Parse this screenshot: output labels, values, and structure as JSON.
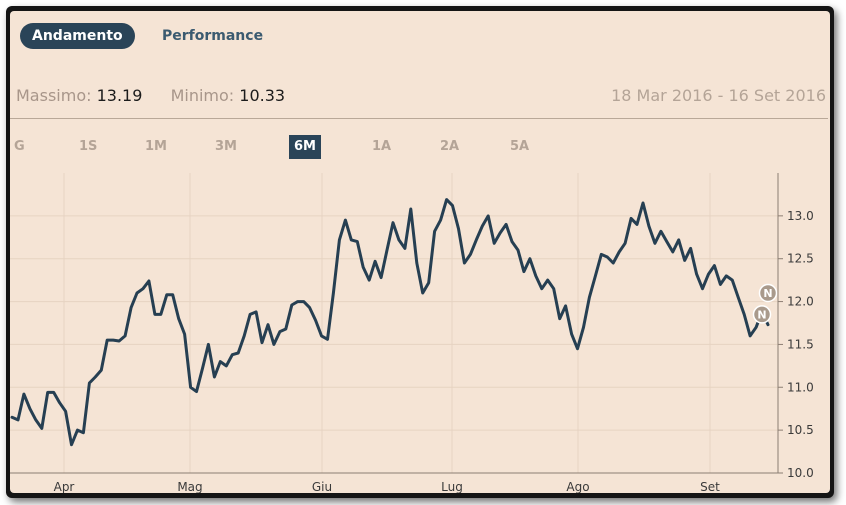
{
  "tabs": {
    "andamento": "Andamento",
    "performance": "Performance"
  },
  "stats": {
    "max_label": "Massimo:",
    "max_value": "13.19",
    "min_label": "Minimo:",
    "min_value": "10.33"
  },
  "date_range": "18 Mar 2016 - 16 Set 2016",
  "periods": {
    "g": "G",
    "s1": "1S",
    "m1": "1M",
    "m3": "3M",
    "m6": "6M",
    "a1": "1A",
    "a2": "2A",
    "a5": "5A"
  },
  "selected_period": "6M",
  "colors": {
    "line": "#263f52",
    "accent": "#2a4458",
    "background": "#f5e4d5",
    "grid": "#e6d3c2",
    "marker": "#a99a8c"
  },
  "chart_data": {
    "type": "line",
    "title": "",
    "xlabel": "",
    "ylabel": "",
    "ylim": [
      10.0,
      13.5
    ],
    "y_ticks": [
      10.0,
      10.5,
      11.0,
      11.5,
      12.0,
      12.5,
      13.0
    ],
    "x_ticks": [
      "Apr",
      "Mag",
      "Giu",
      "Lug",
      "Ago",
      "Set"
    ],
    "grid": true,
    "series": [
      {
        "name": "",
        "values": [
          10.65,
          10.62,
          10.92,
          10.75,
          10.62,
          10.52,
          10.94,
          10.94,
          10.82,
          10.72,
          10.33,
          10.5,
          10.47,
          11.05,
          11.12,
          11.2,
          11.55,
          11.55,
          11.54,
          11.6,
          11.93,
          12.1,
          12.15,
          12.24,
          11.85,
          11.85,
          12.08,
          12.08,
          11.8,
          11.62,
          11.0,
          10.95,
          11.22,
          11.5,
          11.12,
          11.3,
          11.25,
          11.38,
          11.4,
          11.6,
          11.85,
          11.88,
          11.52,
          11.73,
          11.5,
          11.65,
          11.68,
          11.96,
          12.0,
          12.0,
          11.93,
          11.78,
          11.6,
          11.56,
          12.1,
          12.72,
          12.95,
          12.72,
          12.7,
          12.4,
          12.25,
          12.47,
          12.28,
          12.6,
          12.92,
          12.72,
          12.62,
          13.08,
          12.45,
          12.1,
          12.22,
          12.82,
          12.95,
          13.19,
          13.12,
          12.85,
          12.45,
          12.55,
          12.72,
          12.88,
          13.0,
          12.68,
          12.8,
          12.9,
          12.7,
          12.6,
          12.35,
          12.5,
          12.3,
          12.15,
          12.25,
          12.15,
          11.8,
          11.95,
          11.62,
          11.45,
          11.7,
          12.05,
          12.3,
          12.55,
          12.52,
          12.45,
          12.58,
          12.68,
          12.97,
          12.9,
          13.15,
          12.88,
          12.68,
          12.82,
          12.7,
          12.58,
          12.72,
          12.48,
          12.62,
          12.32,
          12.15,
          12.32,
          12.42,
          12.2,
          12.3,
          12.25,
          12.05,
          11.85,
          11.6,
          11.7,
          11.88,
          11.73
        ]
      }
    ],
    "markers": [
      {
        "label": "N",
        "value": 12.1
      },
      {
        "label": "N",
        "value": 11.85
      }
    ]
  }
}
